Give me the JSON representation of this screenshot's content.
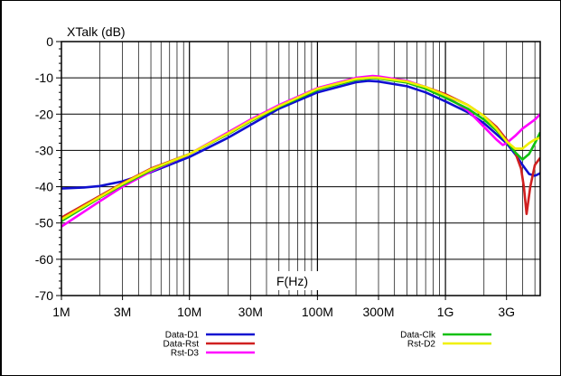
{
  "chart_data": {
    "type": "line",
    "ylabel": "XTalk (dB)",
    "xlabel": "F(Hz)",
    "x_scale": "log",
    "xlim": [
      1000000,
      5500000000
    ],
    "ylim": [
      -70,
      0
    ],
    "grid": true,
    "x_ticks": [
      {
        "value": 1000000,
        "label": "1M"
      },
      {
        "value": 3000000,
        "label": "3M"
      },
      {
        "value": 10000000,
        "label": "10M"
      },
      {
        "value": 30000000,
        "label": "30M"
      },
      {
        "value": 100000000,
        "label": "100M"
      },
      {
        "value": 300000000,
        "label": "300M"
      },
      {
        "value": 1000000000,
        "label": "1G"
      },
      {
        "value": 3000000000,
        "label": "3G"
      }
    ],
    "y_ticks": [
      {
        "value": 0,
        "label": "0"
      },
      {
        "value": -10,
        "label": "-10"
      },
      {
        "value": -20,
        "label": "-20"
      },
      {
        "value": -30,
        "label": "-30"
      },
      {
        "value": -40,
        "label": "-40"
      },
      {
        "value": -50,
        "label": "-50"
      },
      {
        "value": -60,
        "label": "-60"
      },
      {
        "value": -70,
        "label": "-70"
      }
    ],
    "legend_placement": "bottom",
    "series": [
      {
        "name": "Data-D1",
        "color": "#1010d0",
        "x": [
          1000000,
          1500000,
          2000000,
          3000000,
          5000000,
          10000000,
          20000000,
          30000000,
          50000000,
          100000000,
          200000000,
          250000000,
          300000000,
          500000000,
          700000000,
          1000000000,
          1500000000,
          2000000000,
          2500000000,
          3000000000,
          3500000000,
          4000000000,
          4500000000,
          5000000000,
          5500000000
        ],
        "y": [
          -40.5,
          -40.2,
          -39.8,
          -38.5,
          -36.0,
          -31.8,
          -26.5,
          -23.0,
          -18.5,
          -14.0,
          -11.2,
          -10.8,
          -11.0,
          -12.3,
          -14.0,
          -16.5,
          -19.5,
          -22.5,
          -25.5,
          -28.0,
          -31.0,
          -34.0,
          -36.5,
          -37.0,
          -36.3
        ]
      },
      {
        "name": "Data-Rst",
        "color": "#d02020",
        "x": [
          1000000,
          2000000,
          3000000,
          5000000,
          10000000,
          20000000,
          30000000,
          50000000,
          100000000,
          200000000,
          270000000,
          300000000,
          500000000,
          700000000,
          1000000000,
          1500000000,
          2000000000,
          2500000000,
          3000000000,
          3500000000,
          3900000000,
          4100000000,
          4300000000,
          4600000000,
          5000000000,
          5500000000
        ],
        "y": [
          -48.5,
          -42.5,
          -39.0,
          -35.0,
          -31.0,
          -25.5,
          -22.0,
          -18.0,
          -13.0,
          -10.3,
          -9.8,
          -9.9,
          -11.0,
          -12.5,
          -14.5,
          -17.5,
          -20.5,
          -23.5,
          -27.0,
          -30.5,
          -35.0,
          -40.0,
          -47.5,
          -40.0,
          -34.0,
          -32.0
        ]
      },
      {
        "name": "Rst-D3",
        "color": "#ff00ff",
        "x": [
          1000000,
          2000000,
          3000000,
          5000000,
          10000000,
          20000000,
          30000000,
          50000000,
          100000000,
          200000000,
          270000000,
          300000000,
          500000000,
          700000000,
          1000000000,
          1500000000,
          2000000000,
          2500000000,
          2800000000,
          3000000000,
          3500000000,
          4000000000,
          5000000000,
          5500000000
        ],
        "y": [
          -51.0,
          -44.0,
          -40.0,
          -35.8,
          -31.0,
          -25.0,
          -21.5,
          -17.5,
          -12.8,
          -10.0,
          -9.5,
          -9.6,
          -10.8,
          -12.5,
          -15.0,
          -19.0,
          -23.5,
          -27.0,
          -28.5,
          -28.0,
          -26.0,
          -24.0,
          -21.5,
          -20.0
        ]
      },
      {
        "name": "Data-Clk",
        "color": "#10c010",
        "x": [
          1000000,
          2000000,
          3000000,
          5000000,
          10000000,
          20000000,
          30000000,
          50000000,
          100000000,
          200000000,
          270000000,
          300000000,
          500000000,
          700000000,
          1000000000,
          1500000000,
          2000000000,
          2500000000,
          3000000000,
          3500000000,
          4000000000,
          4500000000,
          5000000000,
          5500000000
        ],
        "y": [
          -49.5,
          -43.0,
          -39.5,
          -35.5,
          -31.0,
          -25.5,
          -22.0,
          -18.0,
          -13.3,
          -10.5,
          -10.1,
          -10.2,
          -11.3,
          -13.0,
          -15.5,
          -18.5,
          -21.5,
          -24.5,
          -27.5,
          -30.5,
          -32.5,
          -31.0,
          -28.0,
          -25.0
        ]
      },
      {
        "name": "Rst-D2",
        "color": "#f0f000",
        "x": [
          1000000,
          2000000,
          3000000,
          5000000,
          10000000,
          20000000,
          30000000,
          50000000,
          100000000,
          200000000,
          270000000,
          300000000,
          500000000,
          700000000,
          1000000000,
          1500000000,
          2000000000,
          2500000000,
          3000000000,
          3500000000,
          4000000000,
          4500000000,
          5000000000,
          5500000000
        ],
        "y": [
          -49.0,
          -42.8,
          -39.2,
          -35.2,
          -31.0,
          -25.3,
          -21.8,
          -17.8,
          -13.0,
          -10.3,
          -9.9,
          -10.0,
          -11.0,
          -12.5,
          -14.8,
          -17.5,
          -20.5,
          -24.0,
          -27.5,
          -29.5,
          -29.5,
          -28.0,
          -27.0,
          -26.5
        ]
      }
    ]
  }
}
